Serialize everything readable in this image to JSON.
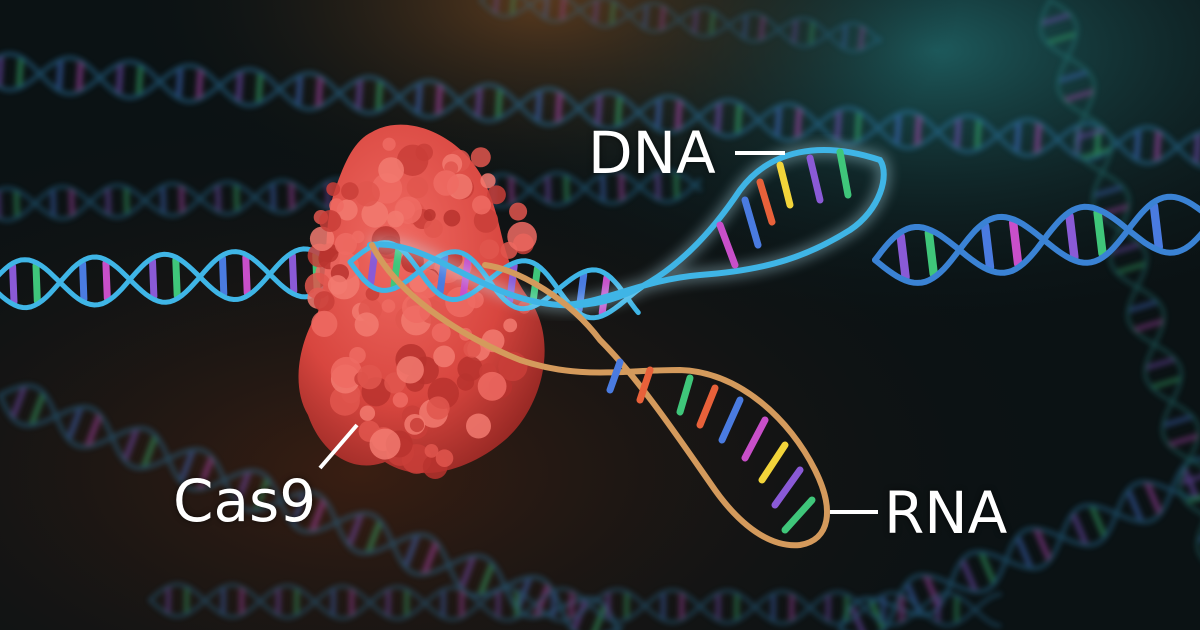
{
  "labels": {
    "dna": "DNA",
    "cas9": "Cas9",
    "rna": "RNA"
  },
  "colors": {
    "dna_backbone": "#3fb5e6",
    "dna_backbone_glow": "#bff0ff",
    "rna_backbone": "#d49a5c",
    "cas9_protein": "#e0504a",
    "background": "#0b1214",
    "base_pair_palette": [
      "#f2d43a",
      "#8a5ad6",
      "#3fc67a",
      "#e8613a",
      "#4a7be0",
      "#c84fc9"
    ]
  }
}
